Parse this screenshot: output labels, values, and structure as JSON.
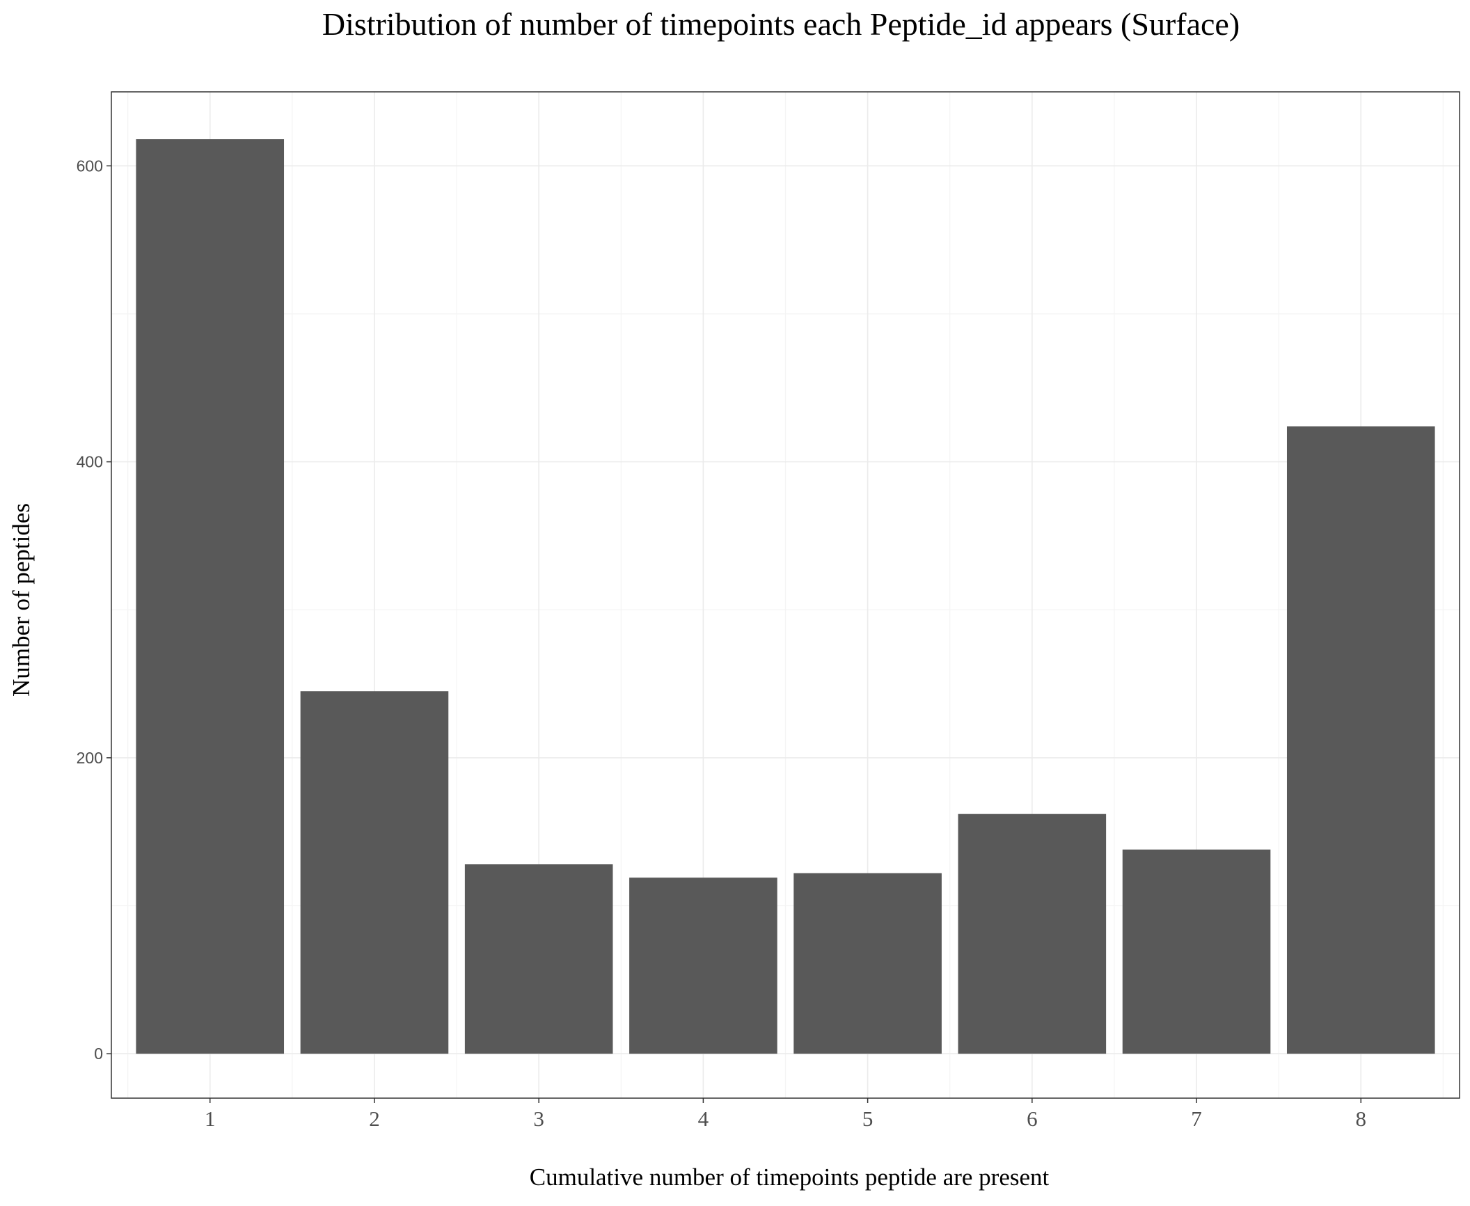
{
  "chart_data": {
    "type": "bar",
    "title": "Distribution of number of timepoints each Peptide_id appears (Surface)",
    "xlabel": "Cumulative number of timepoints peptide are present",
    "ylabel": "Number of peptides",
    "categories": [
      "1",
      "2",
      "3",
      "4",
      "5",
      "6",
      "7",
      "8"
    ],
    "values": [
      618,
      245,
      128,
      119,
      122,
      162,
      138,
      424
    ],
    "ylim": [
      -30,
      650
    ],
    "yticks": [
      0,
      200,
      400,
      600
    ],
    "grid": true,
    "legend": "none",
    "colors": {
      "bar": "#595959",
      "panel_border": "#333333",
      "grid_major": "#ebebeb",
      "grid_minor": "#f4f4f4",
      "tick_mark": "#333333"
    }
  }
}
